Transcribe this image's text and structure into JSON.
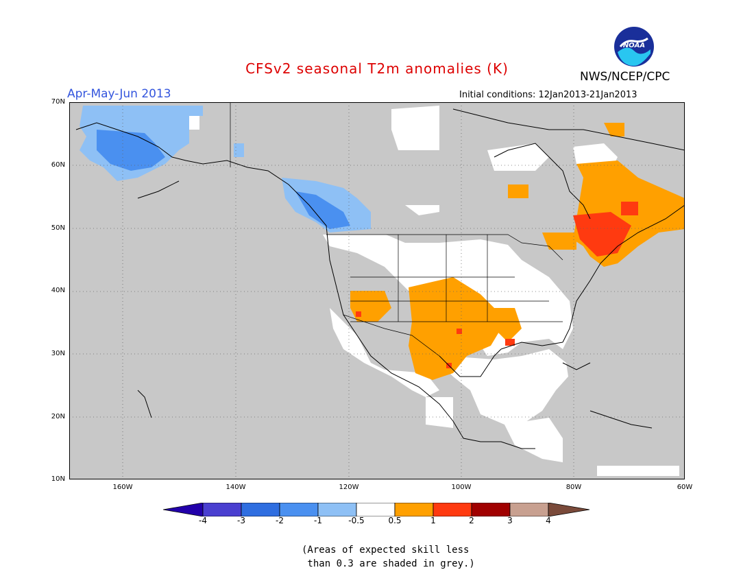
{
  "header": {
    "title": "CFSv2 seasonal T2m anomalies (K)",
    "title_color": "#dd0000",
    "period": "Apr-May-Jun 2013",
    "period_color": "#3355dd",
    "initial_conditions": "Initial conditions: 12Jan2013-21Jan2013",
    "center": "NWS/NCEP/CPC",
    "logo_text": "NOAA"
  },
  "map": {
    "background_color": "#c8c8c8",
    "lat_labels": [
      "70N",
      "60N",
      "50N",
      "40N",
      "30N",
      "20N",
      "10N"
    ],
    "lon_labels": [
      "160W",
      "140W",
      "120W",
      "100W",
      "80W",
      "60W"
    ]
  },
  "legend": {
    "labels": [
      "-4",
      "-3",
      "-2",
      "-1",
      "-0.5",
      "0.5",
      "1",
      "2",
      "3",
      "4"
    ],
    "colors": [
      "#2200aa",
      "#4a3fd0",
      "#2f6ee0",
      "#4a90f0",
      "#8ec0f5",
      "#ffffff",
      "#ffa000",
      "#ff3a10",
      "#a00000",
      "#c8a090",
      "#7a4a3a"
    ]
  },
  "note": {
    "line1": "(Areas of expected skill less",
    "line2": " than 0.3 are shaded in grey.)"
  }
}
